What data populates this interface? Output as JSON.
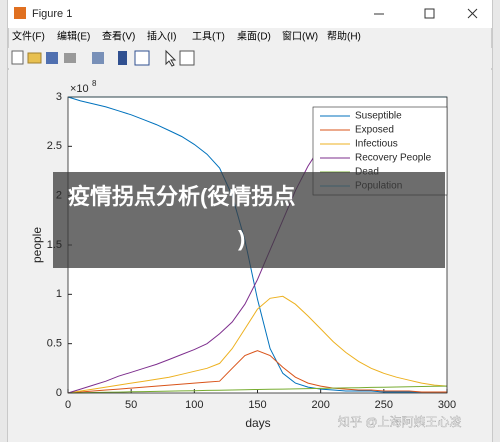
{
  "window": {
    "title": "Figure 1",
    "menu": [
      "文件(F)",
      "编辑(E)",
      "查看(V)",
      "插入(I)",
      "工具(T)",
      "桌面(D)",
      "窗口(W)",
      "帮助(H)"
    ]
  },
  "overlay": {
    "lines": [
      "疫情拐点分析(役情拐点",
      ")"
    ]
  },
  "watermark": "知乎 @上海阿姨王心凌",
  "chart_data": {
    "type": "line",
    "x_label": "days",
    "y_label": "people",
    "y_multiplier": "×10",
    "y_multiplier_exponent": "8",
    "x": [
      0,
      10,
      20,
      30,
      40,
      50,
      60,
      70,
      80,
      90,
      100,
      110,
      120,
      130,
      140,
      150,
      160,
      170,
      180,
      190,
      200,
      210,
      220,
      230,
      240,
      250,
      260,
      270,
      280,
      290,
      300
    ],
    "series": [
      {
        "name": "Suseptible",
        "color": "#0072bd",
        "values": [
          3,
          2.96,
          2.93,
          2.9,
          2.86,
          2.82,
          2.77,
          2.72,
          2.66,
          2.6,
          2.52,
          2.42,
          2.28,
          2.0,
          1.55,
          0.95,
          0.45,
          0.2,
          0.1,
          0.06,
          0.04,
          0.03,
          0.02,
          0.02,
          0.02,
          0.01,
          0.01,
          0.01,
          0.01,
          0.01,
          0.01
        ]
      },
      {
        "name": "Exposed",
        "color": "#d95319",
        "values": [
          0,
          0.01,
          0.02,
          0.03,
          0.04,
          0.05,
          0.06,
          0.07,
          0.08,
          0.09,
          0.1,
          0.11,
          0.12,
          0.25,
          0.38,
          0.43,
          0.38,
          0.26,
          0.16,
          0.1,
          0.07,
          0.05,
          0.04,
          0.03,
          0.03,
          0.02,
          0.02,
          0.02,
          0.01,
          0.01,
          0.01
        ]
      },
      {
        "name": "Infectious",
        "color": "#edb120",
        "values": [
          0,
          0.02,
          0.04,
          0.06,
          0.08,
          0.1,
          0.12,
          0.14,
          0.16,
          0.19,
          0.22,
          0.25,
          0.3,
          0.45,
          0.65,
          0.85,
          0.96,
          0.98,
          0.9,
          0.78,
          0.65,
          0.52,
          0.41,
          0.32,
          0.25,
          0.2,
          0.16,
          0.13,
          0.1,
          0.08,
          0.07
        ]
      },
      {
        "name": "Recovery People",
        "color": "#7e2f8e",
        "values": [
          0,
          0.04,
          0.08,
          0.12,
          0.17,
          0.21,
          0.25,
          0.29,
          0.34,
          0.39,
          0.44,
          0.5,
          0.6,
          0.72,
          0.9,
          1.15,
          1.45,
          1.75,
          2.05,
          2.3,
          2.5,
          2.65,
          2.75,
          2.8,
          2.84,
          2.86,
          2.87,
          2.88,
          2.88,
          2.89,
          2.89
        ]
      },
      {
        "name": "Dead",
        "color": "#77ac30",
        "values": [
          0,
          0.002,
          0.005,
          0.007,
          0.009,
          0.012,
          0.014,
          0.016,
          0.019,
          0.021,
          0.023,
          0.026,
          0.028,
          0.03,
          0.033,
          0.035,
          0.038,
          0.04,
          0.042,
          0.045,
          0.047,
          0.05,
          0.052,
          0.054,
          0.057,
          0.059,
          0.061,
          0.064,
          0.066,
          0.068,
          0.07
        ]
      },
      {
        "name": "Population",
        "color": "#4dbeee",
        "values": [
          3,
          3,
          3,
          3,
          3,
          3,
          3,
          3,
          3,
          3,
          3,
          3,
          3,
          3,
          3,
          3,
          3,
          3,
          3,
          3,
          3,
          3,
          3,
          3,
          3,
          3,
          3,
          3,
          3,
          3,
          3
        ]
      }
    ],
    "xlim": [
      0,
      300
    ],
    "xticks": [
      0,
      50,
      100,
      150,
      200,
      250,
      300
    ],
    "ylim": [
      0,
      3
    ],
    "yticks": [
      0,
      0.5,
      1,
      1.5,
      2,
      2.5,
      3
    ],
    "grid": false,
    "legend": "northeast"
  }
}
